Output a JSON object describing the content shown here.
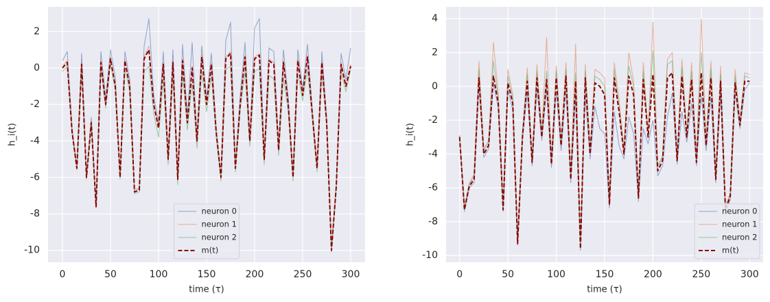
{
  "chart_data": [
    {
      "type": "line",
      "xlabel": "time (τ)",
      "ylabel": "h_i(t)",
      "xlim": [
        -15,
        315
      ],
      "ylim": [
        -10.65,
        3.35
      ],
      "xticks": [
        0,
        50,
        100,
        150,
        200,
        250,
        300
      ],
      "yticks": [
        -10,
        -8,
        -6,
        -4,
        -2,
        0,
        2
      ],
      "grid": true,
      "legend": "lower center",
      "x": [
        0,
        5,
        10,
        15,
        20,
        25,
        30,
        35,
        40,
        45,
        50,
        55,
        60,
        65,
        70,
        75,
        80,
        85,
        90,
        95,
        100,
        105,
        110,
        115,
        120,
        125,
        130,
        135,
        140,
        145,
        150,
        155,
        160,
        165,
        170,
        175,
        180,
        185,
        190,
        195,
        200,
        205,
        210,
        215,
        220,
        225,
        230,
        235,
        240,
        245,
        250,
        255,
        260,
        265,
        270,
        275,
        280,
        285,
        290,
        295,
        300
      ],
      "series": [
        {
          "name": "neuron 0",
          "color": "#4c72b0",
          "linestyle": "solid",
          "values": [
            0.4,
            0.9,
            -3.3,
            -5.4,
            0.8,
            -5.9,
            -2.7,
            -7.5,
            0.9,
            -1.6,
            1.0,
            -0.5,
            -5.9,
            0.9,
            -0.6,
            -6.7,
            -6.6,
            1.2,
            2.7,
            -1.5,
            -3.0,
            0.9,
            -4.8,
            1.0,
            -6.0,
            1.3,
            -2.6,
            1.4,
            -3.8,
            1.2,
            -1.6,
            0.8,
            -3.3,
            -5.9,
            1.5,
            2.5,
            -5.3,
            -1.5,
            1.4,
            -3.8,
            2.2,
            2.7,
            -4.8,
            1.1,
            0.9,
            -4.3,
            1.0,
            -1.6,
            -5.9,
            1.0,
            -1.1,
            1.3,
            -2.2,
            -5.4,
            0.9,
            -2.7,
            -9.9,
            -6.4,
            0.8,
            -0.6,
            1.1
          ]
        },
        {
          "name": "neuron 1",
          "color": "#dd8452",
          "linestyle": "solid",
          "values": [
            0.1,
            0.4,
            -3.4,
            -5.4,
            0.3,
            -5.9,
            -2.9,
            -7.5,
            0.4,
            -1.9,
            0.6,
            -0.9,
            -5.9,
            0.5,
            -0.9,
            -6.7,
            -6.6,
            0.6,
            1.2,
            -1.9,
            -3.2,
            0.3,
            -4.9,
            0.4,
            -6.0,
            0.5,
            -2.9,
            0.1,
            -3.9,
            0.7,
            -1.9,
            0.3,
            -3.4,
            -5.9,
            0.6,
            0.9,
            -5.4,
            -1.9,
            0.7,
            -3.9,
            0.6,
            0.8,
            -4.9,
            0.5,
            0.3,
            -4.4,
            0.4,
            -1.9,
            -5.9,
            0.5,
            -1.4,
            0.7,
            -2.4,
            -5.4,
            0.4,
            -2.9,
            -9.9,
            -6.4,
            0.3,
            -0.9,
            0.2
          ]
        },
        {
          "name": "neuron 2",
          "color": "#55a868",
          "linestyle": "solid",
          "values": [
            -0.2,
            0.1,
            -3.6,
            -5.6,
            0,
            -6.1,
            -3.1,
            -7.7,
            0,
            -2.2,
            0.2,
            -1.2,
            -6.1,
            0,
            -1.3,
            -6.9,
            -6.8,
            -0.2,
            0.1,
            -2.5,
            -3.8,
            -0.6,
            -5.3,
            -0.5,
            -6.4,
            -0.3,
            -3.4,
            -0.8,
            -4.4,
            -0.2,
            -2.4,
            -0.4,
            -3.8,
            -6.2,
            -0.1,
            0.1,
            -5.7,
            -2.3,
            -0.2,
            -4.3,
            -0.2,
            0,
            -5.3,
            -0.4,
            -0.6,
            -4.8,
            -0.5,
            -2.4,
            -6.2,
            -0.3,
            -1.8,
            -0.1,
            -2.8,
            -5.7,
            -0.2,
            -3.2,
            -10.1,
            -6.6,
            -0.2,
            -1.3,
            -0.1
          ]
        },
        {
          "name": "m(t)",
          "color": "#8b0000",
          "linestyle": "dashed",
          "values": [
            0,
            0.3,
            -3.5,
            -5.5,
            0.2,
            -6,
            -3,
            -7.6,
            0.3,
            -2,
            0.5,
            -1,
            -6,
            0.4,
            -1,
            -6.8,
            -6.7,
            0.5,
            1,
            -2,
            -3.3,
            0.2,
            -5,
            0.3,
            -6.1,
            0.4,
            -3,
            0,
            -4,
            0.6,
            -2,
            0.2,
            -3.5,
            -6,
            0.5,
            0.8,
            -5.5,
            -2,
            0.6,
            -4,
            0.5,
            0.7,
            -5,
            0.4,
            0.2,
            -4.5,
            0.3,
            -2,
            -6,
            0.4,
            -1.5,
            0.6,
            -2.5,
            -5.5,
            0.3,
            -3,
            -10,
            -6.5,
            0.2,
            -1,
            0.1
          ]
        }
      ]
    },
    {
      "type": "line",
      "xlabel": "time (τ)",
      "ylabel": "h_i(t)",
      "xlim": [
        -14,
        314
      ],
      "ylim": [
        -10.4,
        4.7
      ],
      "xticks": [
        0,
        50,
        100,
        150,
        200,
        250,
        300
      ],
      "yticks": [
        -10,
        -8,
        -6,
        -4,
        -2,
        0,
        2,
        4
      ],
      "grid": true,
      "legend": "lower right",
      "x": [
        0,
        5,
        10,
        15,
        20,
        25,
        30,
        35,
        40,
        45,
        50,
        55,
        60,
        65,
        70,
        75,
        80,
        85,
        90,
        95,
        100,
        105,
        110,
        115,
        120,
        125,
        130,
        135,
        140,
        145,
        150,
        155,
        160,
        165,
        170,
        175,
        180,
        185,
        190,
        195,
        200,
        205,
        210,
        215,
        220,
        225,
        230,
        235,
        240,
        245,
        250,
        255,
        260,
        265,
        270,
        275,
        280,
        285,
        290,
        295,
        300
      ],
      "series": [
        {
          "name": "neuron 0",
          "color": "#4c72b0",
          "linestyle": "solid",
          "values": [
            -3.1,
            -7.4,
            -6.0,
            -5.7,
            0.1,
            -4.2,
            -3.7,
            0.2,
            -1.3,
            -7.4,
            -0.2,
            -1.4,
            -9.4,
            -3.2,
            -0.3,
            -4.7,
            -0.1,
            -3.2,
            -0.2,
            -4.8,
            -0.3,
            -3.8,
            -0.2,
            -5.7,
            -0.6,
            -9.7,
            -0.5,
            -4.3,
            -1.2,
            -2.5,
            -2.8,
            -7.2,
            -1.5,
            -3.5,
            -4.3,
            -1.8,
            -2.8,
            -6.8,
            -2.5,
            -3.4,
            -2.0,
            -5.3,
            -4.7,
            -1.8,
            -0.4,
            -4.6,
            -1.5,
            -3.3,
            -1.0,
            -4.7,
            -0.5,
            -3.8,
            -0.6,
            -5.7,
            -0.4,
            -7.5,
            -6.7,
            -0.4,
            -2.5,
            -0.2,
            0.2
          ]
        },
        {
          "name": "neuron 1",
          "color": "#dd8452",
          "linestyle": "solid",
          "values": [
            -2.9,
            -7.1,
            -5.7,
            -5.2,
            1.5,
            -3.7,
            -3.2,
            2.6,
            -0.4,
            -7.1,
            1.0,
            -0.5,
            -9.1,
            -2.7,
            1.1,
            -4.3,
            1.3,
            -2.7,
            2.9,
            -4.3,
            1.2,
            -3.2,
            1.4,
            -5.2,
            2.5,
            -9.4,
            1.3,
            -3.7,
            1.0,
            0.8,
            0.5,
            -6.8,
            1.4,
            -0.8,
            -3.7,
            2.0,
            0.3,
            -6.4,
            1.4,
            -2.7,
            3.8,
            -4.7,
            -4.1,
            1.6,
            2.0,
            -4.1,
            1.6,
            -2.7,
            1.4,
            -4.3,
            4.0,
            -3.2,
            1.5,
            -5.2,
            1.2,
            -7.1,
            -6.3,
            1.0,
            -2.0,
            0.8,
            0.7
          ]
        },
        {
          "name": "neuron 2",
          "color": "#55a868",
          "linestyle": "solid",
          "values": [
            -2.9,
            -7.2,
            -5.8,
            -5.3,
            1.0,
            -3.8,
            -3.3,
            1.5,
            -0.7,
            -7.2,
            0.6,
            -0.7,
            -9.2,
            -2.8,
            0.7,
            -4.4,
            0.9,
            -2.8,
            0.9,
            -4.5,
            0.9,
            -3.3,
            1.0,
            -5.3,
            0.8,
            -9.5,
            0.9,
            -3.8,
            0.6,
            0.4,
            0,
            -6.9,
            1.0,
            -1.2,
            -3.8,
            1.2,
            0,
            -6.5,
            0.9,
            -2.8,
            2.1,
            -4.8,
            -4.2,
            1.3,
            1.5,
            -4.2,
            1.1,
            -2.8,
            0.9,
            -4.4,
            2.0,
            -3.3,
            1.0,
            -5.3,
            0.7,
            -7.2,
            -6.4,
            0.6,
            -2.1,
            0.6,
            0.5
          ]
        },
        {
          "name": "m(t)",
          "color": "#8b0000",
          "linestyle": "dashed",
          "values": [
            -3,
            -7.3,
            -5.9,
            -5.5,
            0.5,
            -4,
            -3.5,
            0.6,
            -1,
            -7.3,
            0.2,
            -1,
            -9.3,
            -3,
            0.3,
            -4.5,
            0.5,
            -3,
            0.4,
            -4.6,
            0.5,
            -3.5,
            0.6,
            -5.5,
            0.3,
            -9.6,
            0.5,
            -4,
            0.2,
            0,
            -0.5,
            -7,
            0.5,
            -1.5,
            -4,
            0.6,
            -0.5,
            -6.6,
            0.4,
            -3,
            0.7,
            -5,
            -4.4,
            0.5,
            0.8,
            -4.4,
            0.6,
            -3,
            0.4,
            -4.5,
            0.8,
            -3.5,
            0.5,
            -5.5,
            0.3,
            -7.3,
            -6.5,
            0.2,
            -2.3,
            0.3,
            0.3
          ]
        }
      ]
    }
  ]
}
